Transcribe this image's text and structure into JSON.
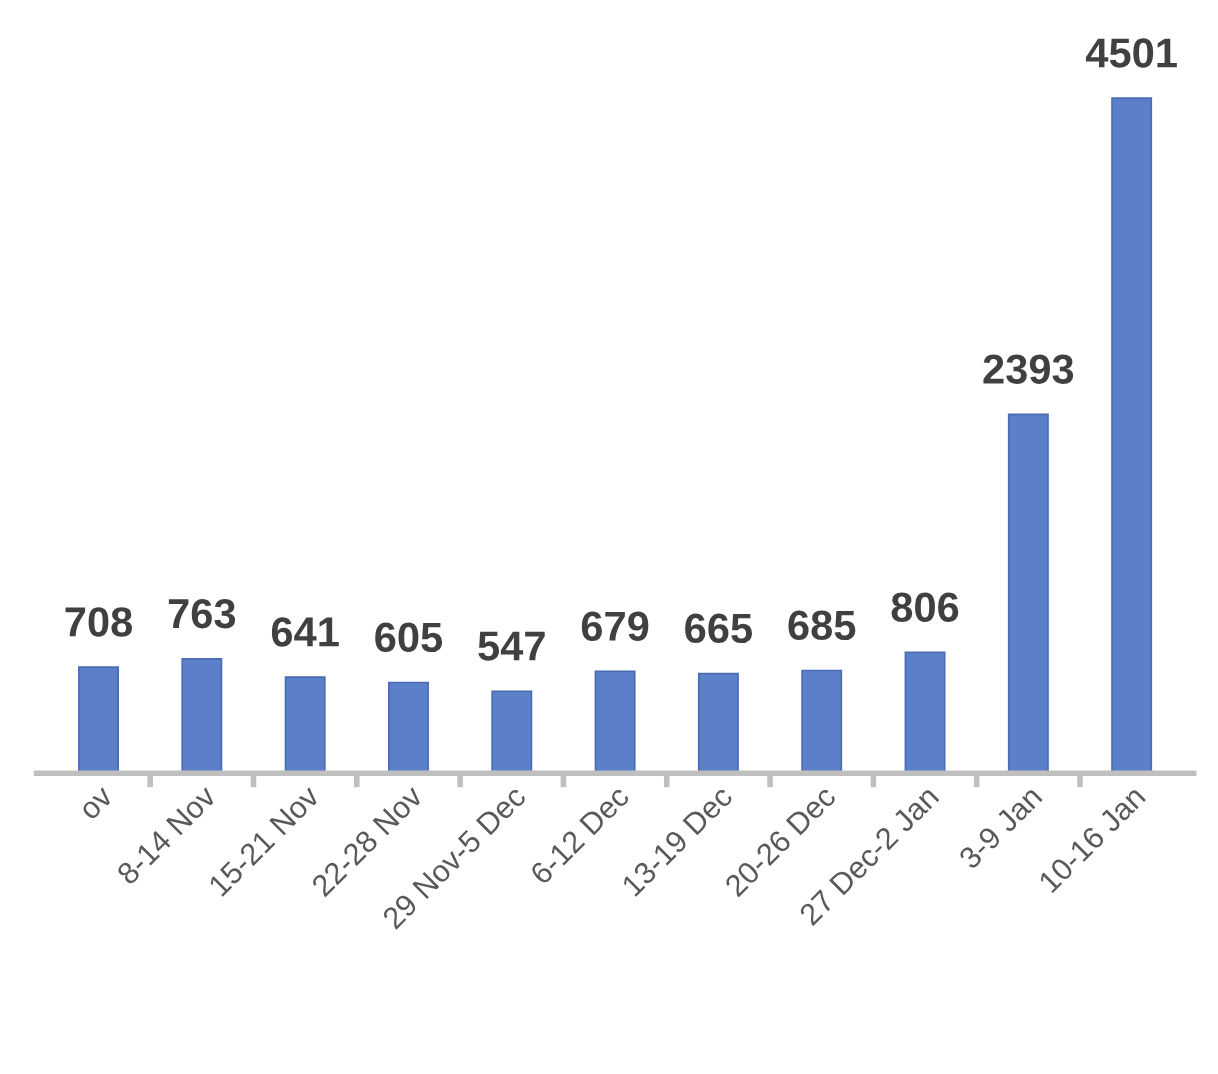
{
  "chart_data": {
    "type": "bar",
    "categories": [
      "ov",
      "8-14 Nov",
      "15-21 Nov",
      "22-28 Nov",
      "29 Nov-5 Dec",
      "6-12 Dec",
      "13-19 Dec",
      "20-26 Dec",
      "27 Dec-2 Jan",
      "3-9 Jan",
      "10-16 Jan"
    ],
    "values": [
      708,
      763,
      641,
      605,
      547,
      679,
      665,
      685,
      806,
      2393,
      4501
    ],
    "color": "#5b7fc9",
    "data_labels": true,
    "grid": false,
    "legend": false
  }
}
